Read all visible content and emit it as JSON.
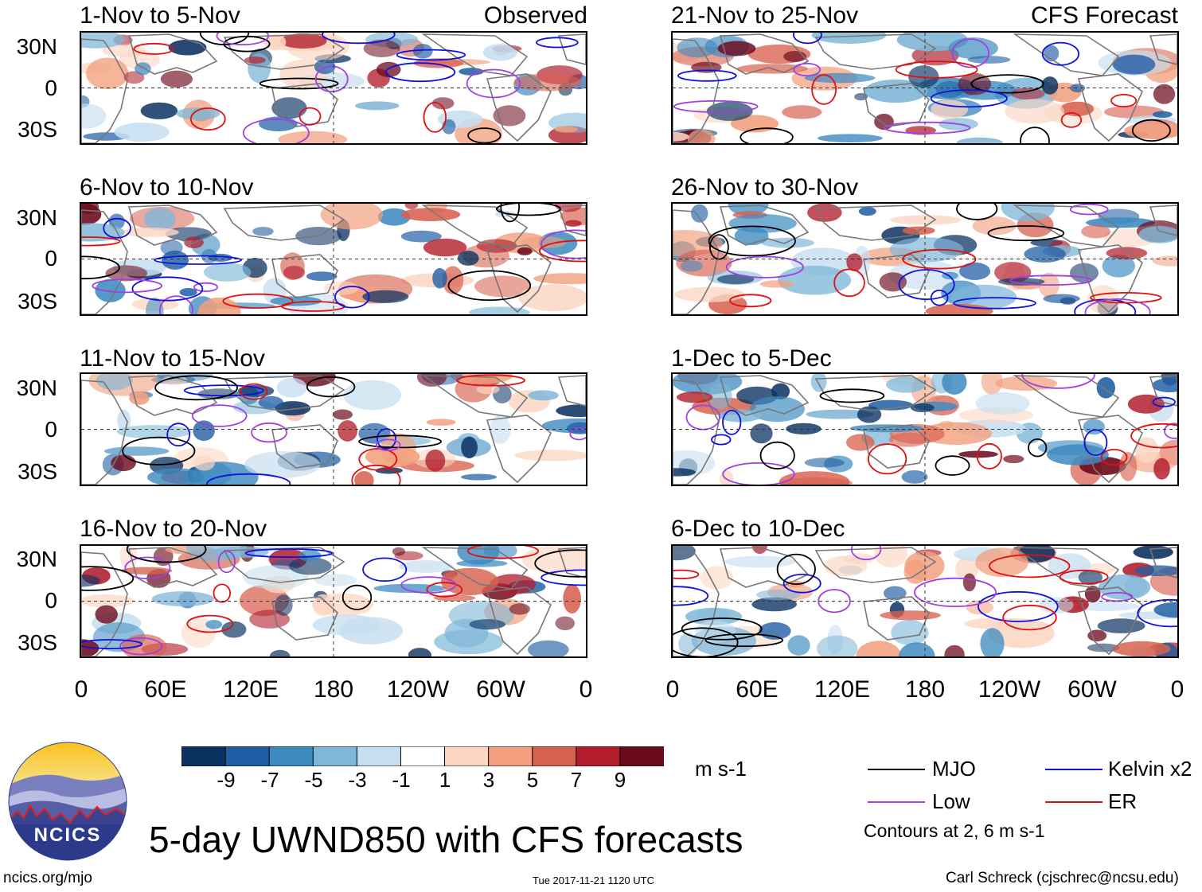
{
  "figure": {
    "title": "5-day UWND850 with CFS forecasts",
    "units": "m s-1",
    "timestamp": "Tue 2017-11-21 1120 UTC",
    "website": "ncics.org/mjo",
    "author": "Carl Schreck (cjschrec@ncsu.edu)",
    "logo_text": "NCICS"
  },
  "columns": {
    "left_label": "Observed",
    "right_label": "CFS Forecast"
  },
  "lat_labels": [
    "30N",
    "0",
    "30S"
  ],
  "lon_labels": [
    "0",
    "60E",
    "120E",
    "180",
    "120W",
    "60W",
    "0"
  ],
  "panels_left": [
    {
      "period": "1-Nov to 5-Nov"
    },
    {
      "period": "6-Nov to 10-Nov"
    },
    {
      "period": "11-Nov to 15-Nov"
    },
    {
      "period": "16-Nov to 20-Nov"
    }
  ],
  "panels_right": [
    {
      "period": "21-Nov to 25-Nov"
    },
    {
      "period": "26-Nov to 30-Nov"
    },
    {
      "period": "1-Dec to 5-Dec"
    },
    {
      "period": "6-Dec to 10-Dec"
    }
  ],
  "colorbar": {
    "colors": [
      "#0c3262",
      "#1f5ea4",
      "#3d8ac0",
      "#7fb7d8",
      "#c6def0",
      "#ffffff",
      "#fbd6c2",
      "#f2a07e",
      "#d8604e",
      "#b11d2b",
      "#6b0a1d"
    ],
    "labels": [
      "-9",
      "-7",
      "-5",
      "-3",
      "-1",
      "1",
      "3",
      "5",
      "7",
      "9"
    ]
  },
  "legend": {
    "items": [
      {
        "label": "MJO",
        "color": "#000000"
      },
      {
        "label": "Kelvin x2",
        "color": "#1010e0"
      },
      {
        "label": "Low",
        "color": "#a040e0"
      },
      {
        "label": "ER",
        "color": "#e01010"
      }
    ],
    "note": "Contours at 2, 6 m s-1"
  }
}
